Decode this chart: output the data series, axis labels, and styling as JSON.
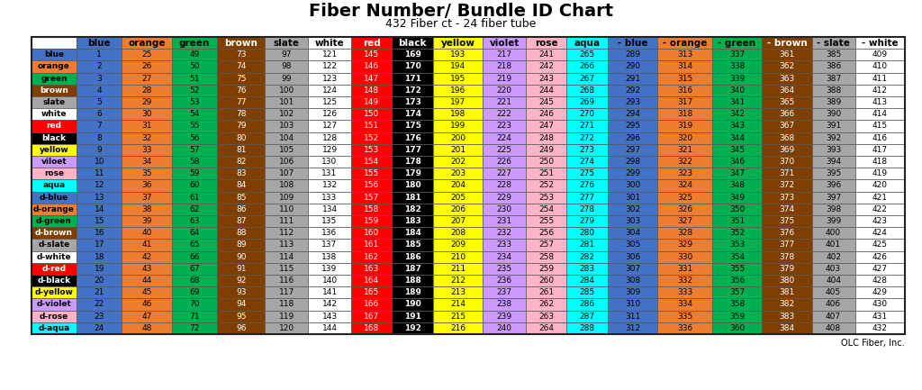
{
  "title": "Fiber Number/ Bundle ID Chart",
  "subtitle": "432 Fiber ct - 24 fiber tube",
  "footer": "OLC Fiber, Inc.",
  "row_labels": [
    "blue",
    "orange",
    "green",
    "brown",
    "slate",
    "white",
    "red",
    "black",
    "yellow",
    "viloet",
    "rose",
    "aqua",
    "d-blue",
    "d-orange",
    "d-green",
    "d-brown",
    "d-slate",
    "d-white",
    "d-red",
    "d-black",
    "d-yellow",
    "d-violet",
    "d-rose",
    "d-aqua"
  ],
  "col_labels": [
    "blue",
    "orange",
    "green",
    "brown",
    "slate",
    "white",
    "red",
    "black",
    "yellow",
    "violet",
    "rose",
    "aqua",
    "- blue",
    "- orange",
    "- green",
    "- brown",
    "- slate",
    "- white"
  ],
  "row_colors": [
    "#4472C4",
    "#ED7D31",
    "#00B050",
    "#7F3F00",
    "#A6A6A6",
    "#FFFFFF",
    "#FF0000",
    "#000000",
    "#FFFF00",
    "#CC99FF",
    "#FFB3C6",
    "#00FFFF",
    "#4472C4",
    "#ED7D31",
    "#00B050",
    "#7F3F00",
    "#A6A6A6",
    "#FFFFFF",
    "#FF0000",
    "#000000",
    "#FFFF00",
    "#CC99FF",
    "#FFB3C6",
    "#00FFFF"
  ],
  "row_text_colors": [
    "#000000",
    "#000000",
    "#000000",
    "#FFFFFF",
    "#000000",
    "#000000",
    "#FFFFFF",
    "#FFFFFF",
    "#000000",
    "#000000",
    "#000000",
    "#000000",
    "#000000",
    "#000000",
    "#000000",
    "#FFFFFF",
    "#000000",
    "#000000",
    "#FFFFFF",
    "#FFFFFF",
    "#000000",
    "#000000",
    "#000000",
    "#000000"
  ],
  "col_colors": [
    "#4472C4",
    "#ED7D31",
    "#00B050",
    "#7F3F00",
    "#A6A6A6",
    "#FFFFFF",
    "#FF0000",
    "#000000",
    "#FFFF00",
    "#CC99FF",
    "#FFB3C6",
    "#00FFFF",
    "#4472C4",
    "#ED7D31",
    "#00B050",
    "#7F3F00",
    "#A6A6A6",
    "#FFFFFF"
  ],
  "col_text_colors": [
    "#000000",
    "#000000",
    "#000000",
    "#FFFFFF",
    "#000000",
    "#000000",
    "#FFFFFF",
    "#FFFFFF",
    "#000000",
    "#000000",
    "#000000",
    "#000000",
    "#000000",
    "#000000",
    "#000000",
    "#FFFFFF",
    "#000000",
    "#000000"
  ],
  "cell_data": [
    [
      1,
      25,
      49,
      73,
      97,
      121,
      145,
      169,
      193,
      217,
      241,
      265,
      289,
      313,
      337,
      361,
      385,
      409
    ],
    [
      2,
      26,
      50,
      74,
      98,
      122,
      146,
      170,
      194,
      218,
      242,
      266,
      290,
      314,
      338,
      362,
      386,
      410
    ],
    [
      3,
      27,
      51,
      75,
      99,
      123,
      147,
      171,
      195,
      219,
      243,
      267,
      291,
      315,
      339,
      363,
      387,
      411
    ],
    [
      4,
      28,
      52,
      76,
      100,
      124,
      148,
      172,
      196,
      220,
      244,
      268,
      292,
      316,
      340,
      364,
      388,
      412
    ],
    [
      5,
      29,
      53,
      77,
      101,
      125,
      149,
      173,
      197,
      221,
      245,
      269,
      293,
      317,
      341,
      365,
      389,
      413
    ],
    [
      6,
      30,
      54,
      78,
      102,
      126,
      150,
      174,
      198,
      222,
      246,
      270,
      294,
      318,
      342,
      366,
      390,
      414
    ],
    [
      7,
      31,
      55,
      79,
      103,
      127,
      151,
      175,
      199,
      223,
      247,
      271,
      295,
      319,
      343,
      367,
      391,
      415
    ],
    [
      8,
      32,
      56,
      80,
      104,
      128,
      152,
      176,
      200,
      224,
      248,
      272,
      296,
      320,
      344,
      368,
      392,
      416
    ],
    [
      9,
      33,
      57,
      81,
      105,
      129,
      153,
      177,
      201,
      225,
      249,
      273,
      297,
      321,
      345,
      369,
      393,
      417
    ],
    [
      10,
      34,
      58,
      82,
      106,
      130,
      154,
      178,
      202,
      226,
      250,
      274,
      298,
      322,
      346,
      370,
      394,
      418
    ],
    [
      11,
      35,
      59,
      83,
      107,
      131,
      155,
      179,
      203,
      227,
      251,
      275,
      299,
      323,
      347,
      371,
      395,
      419
    ],
    [
      12,
      36,
      60,
      84,
      108,
      132,
      156,
      180,
      204,
      228,
      252,
      276,
      300,
      324,
      348,
      372,
      396,
      420
    ],
    [
      13,
      37,
      61,
      85,
      109,
      133,
      157,
      181,
      205,
      229,
      253,
      277,
      301,
      325,
      349,
      373,
      397,
      421
    ],
    [
      14,
      38,
      62,
      86,
      110,
      134,
      158,
      182,
      206,
      230,
      254,
      278,
      302,
      326,
      350,
      374,
      398,
      422
    ],
    [
      15,
      39,
      63,
      87,
      111,
      135,
      159,
      183,
      207,
      231,
      255,
      279,
      303,
      327,
      351,
      375,
      399,
      423
    ],
    [
      16,
      40,
      64,
      88,
      112,
      136,
      160,
      184,
      208,
      232,
      256,
      280,
      304,
      328,
      352,
      376,
      400,
      424
    ],
    [
      17,
      41,
      65,
      89,
      113,
      137,
      161,
      185,
      209,
      233,
      257,
      281,
      305,
      329,
      353,
      377,
      401,
      425
    ],
    [
      18,
      42,
      66,
      90,
      114,
      138,
      162,
      186,
      210,
      234,
      258,
      282,
      306,
      330,
      354,
      378,
      402,
      426
    ],
    [
      19,
      43,
      67,
      91,
      115,
      139,
      163,
      187,
      211,
      235,
      259,
      283,
      307,
      331,
      355,
      379,
      403,
      427
    ],
    [
      20,
      44,
      68,
      92,
      116,
      140,
      164,
      188,
      212,
      236,
      260,
      284,
      308,
      332,
      356,
      380,
      404,
      428
    ],
    [
      21,
      45,
      69,
      93,
      117,
      141,
      165,
      189,
      213,
      237,
      261,
      285,
      309,
      333,
      357,
      381,
      405,
      429
    ],
    [
      22,
      46,
      70,
      94,
      118,
      142,
      166,
      190,
      214,
      238,
      262,
      286,
      310,
      334,
      358,
      382,
      406,
      430
    ],
    [
      23,
      47,
      71,
      95,
      119,
      143,
      167,
      191,
      215,
      239,
      263,
      287,
      311,
      335,
      359,
      383,
      407,
      431
    ],
    [
      24,
      48,
      72,
      96,
      120,
      144,
      168,
      192,
      216,
      240,
      264,
      288,
      312,
      336,
      360,
      384,
      408,
      432
    ]
  ],
  "cell_colors_by_col": [
    "#4472C4",
    "#ED7D31",
    "#00B050",
    "#7F3F00",
    "#A6A6A6",
    "#FFFFFF",
    "#FF0000",
    "#000000",
    "#FFFF00",
    "#CC99FF",
    "#FFB3C6",
    "#00FFFF",
    "#4472C4",
    "#ED7D31",
    "#00B050",
    "#7F3F00",
    "#A6A6A6",
    "#FFFFFF"
  ],
  "cell_text_by_col": [
    "#000000",
    "#000000",
    "#000000",
    "#FFFFFF",
    "#000000",
    "#000000",
    "#FFFFFF",
    "#FFFFFF",
    "#000000",
    "#000000",
    "#000000",
    "#000000",
    "#000000",
    "#000000",
    "#000000",
    "#FFFFFF",
    "#000000",
    "#000000"
  ],
  "title_fontsize": 14,
  "subtitle_fontsize": 9,
  "header_fontsize": 7.5,
  "cell_fontsize": 6.5,
  "row_label_fontsize": 6.5
}
